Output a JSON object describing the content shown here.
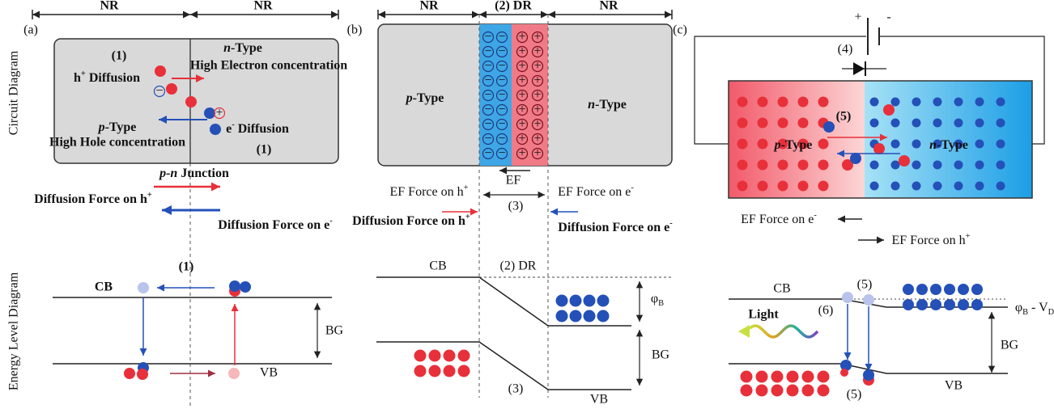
{
  "side_labels": {
    "circuit": "Circuit Diagram",
    "energy": "Energy Level Diagram"
  },
  "panel_a": {
    "label": "(a)",
    "nr_left": "NR",
    "nr_right": "NR",
    "step_1_top": "(1)",
    "n_type": [
      "n",
      "-Type"
    ],
    "n_desc": "High Electron concentration",
    "h_diffusion": [
      "h",
      "+",
      " Diffusion"
    ],
    "p_type": [
      "p",
      "-Type"
    ],
    "p_desc": "High Hole concentration",
    "e_diffusion": [
      "e",
      "-",
      " Diffusion"
    ],
    "step_1_bottom": "(1)",
    "minus": "−",
    "plus": "+",
    "junction": [
      "p-n",
      " Junction"
    ],
    "force_h": [
      "Diffusion Force on h",
      "+"
    ],
    "force_e": [
      "Diffusion Force on e",
      "-"
    ],
    "step_1_energy": "(1)",
    "cb": "CB",
    "bg": "BG",
    "vb": "VB"
  },
  "panel_b": {
    "label": "(b)",
    "nr_left": "NR",
    "dr": "(2) DR",
    "nr_right": "NR",
    "p_type": [
      "p",
      "-Type"
    ],
    "n_type": [
      "n",
      "-Type"
    ],
    "minus": "−",
    "plus": "+",
    "ef": "EF",
    "ef_force_h": [
      "EF Force on h",
      "+"
    ],
    "ef_force_e": [
      "EF Force on e",
      "-"
    ],
    "step_3_top": "(3)",
    "diff_force_h": [
      "Diffusion Force on h",
      "+"
    ],
    "diff_force_e": [
      "Diffusion Force on e",
      "-"
    ],
    "cb": "CB",
    "dr_energy": "(2) DR",
    "phi_b": [
      "φ",
      "B"
    ],
    "bg": "BG",
    "step_3_bottom": "(3)",
    "vb": "VB"
  },
  "panel_c": {
    "label": "(c)",
    "battery_plus": "+",
    "battery_minus": "-",
    "step_4": "(4)",
    "step_5_box": "(5)",
    "p_type": [
      "p",
      "-Type"
    ],
    "n_type": [
      "n",
      "-Type"
    ],
    "ef_force_e": [
      "EF Force on e",
      "-"
    ],
    "ef_force_h": [
      "EF Force on h",
      "+"
    ],
    "cb": "CB",
    "step_5_top": "(5)",
    "light": "Light",
    "step_6": "(6)",
    "barrier": [
      "φ",
      "B",
      " - V",
      "D"
    ],
    "bg": "BG",
    "vb": "VB",
    "step_5_bottom": "(5)"
  }
}
